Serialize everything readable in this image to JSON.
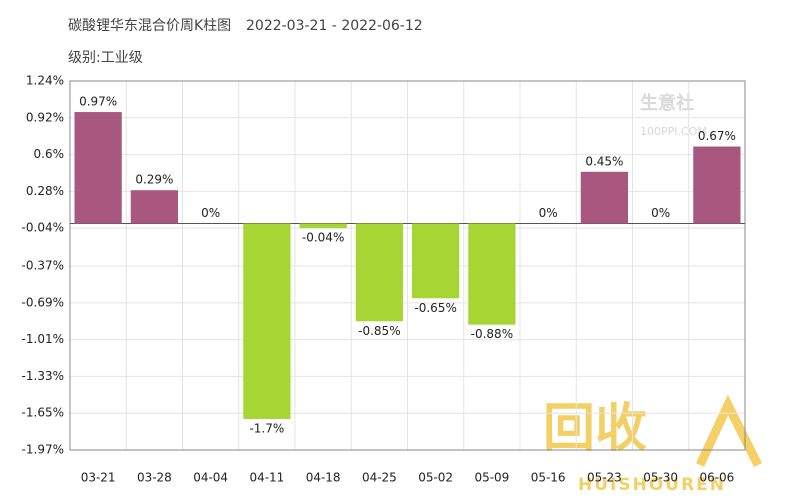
{
  "chart_data": {
    "type": "bar",
    "title": "碳酸锂华东混合价周K柱图",
    "date_range": "2022-03-21 - 2022-06-12",
    "subtitle": "级别:工业级",
    "categories": [
      "03-21",
      "03-28",
      "04-04",
      "04-11",
      "04-18",
      "04-25",
      "05-02",
      "05-09",
      "05-16",
      "05-23",
      "05-30",
      "06-06"
    ],
    "values": [
      0.97,
      0.29,
      0,
      -1.7,
      -0.04,
      -0.85,
      -0.65,
      -0.88,
      0,
      0.45,
      0,
      0.67
    ],
    "value_labels": [
      "0.97%",
      "0.29%",
      "0%",
      "-1.7%",
      "-0.04%",
      "-0.85%",
      "-0.65%",
      "-0.88%",
      "0%",
      "0.45%",
      "0%",
      "0.67%"
    ],
    "positive_color": "#a8577f",
    "negative_color": "#a6d634",
    "ylim": [
      -1.97,
      1.24
    ],
    "yticks": [
      {
        "value": 1.24,
        "label": "1.24%"
      },
      {
        "value": 0.92,
        "label": "0.92%"
      },
      {
        "value": 0.6,
        "label": "0.6%"
      },
      {
        "value": 0.28,
        "label": "0.28%"
      },
      {
        "value": -0.04,
        "label": "-0.04%"
      },
      {
        "value": -0.37,
        "label": "-0.37%"
      },
      {
        "value": -0.69,
        "label": "-0.69%"
      },
      {
        "value": -1.01,
        "label": "-1.01%"
      },
      {
        "value": -1.33,
        "label": "-1.33%"
      },
      {
        "value": -1.65,
        "label": "-1.65%"
      },
      {
        "value": -1.97,
        "label": "-1.97%"
      }
    ],
    "grid": true,
    "watermarks": [
      "生意社",
      "100PPI.COM",
      "回收",
      "HUISHOUREN"
    ]
  }
}
